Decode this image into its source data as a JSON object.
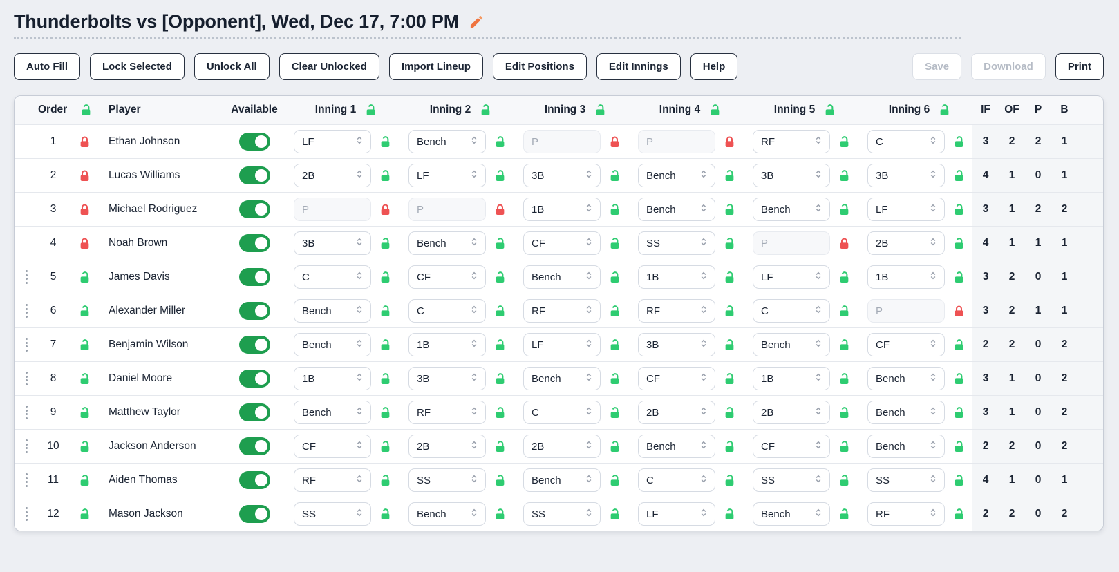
{
  "header": {
    "title": "Thunderbolts vs [Opponent], Wed, Dec 17, 7:00 PM"
  },
  "toolbar": {
    "left_buttons": [
      {
        "label": "Auto Fill",
        "enabled": true
      },
      {
        "label": "Lock Selected",
        "enabled": true
      },
      {
        "label": "Unlock All",
        "enabled": true
      },
      {
        "label": "Clear Unlocked",
        "enabled": true
      },
      {
        "label": "Import Lineup",
        "enabled": true
      },
      {
        "label": "Edit Positions",
        "enabled": true
      },
      {
        "label": "Edit Innings",
        "enabled": true
      },
      {
        "label": "Help",
        "enabled": true
      }
    ],
    "right_buttons": [
      {
        "label": "Save",
        "enabled": false
      },
      {
        "label": "Download",
        "enabled": false
      },
      {
        "label": "Print",
        "enabled": true
      }
    ]
  },
  "table": {
    "columns": {
      "order": "Order",
      "player": "Player",
      "available": "Available",
      "innings": [
        "Inning 1",
        "Inning 2",
        "Inning 3",
        "Inning 4",
        "Inning 5",
        "Inning 6"
      ],
      "stats": [
        "IF",
        "OF",
        "P",
        "B"
      ]
    },
    "players": [
      {
        "order": 1,
        "name": "Ethan Johnson",
        "available": true,
        "row_locked": true,
        "draggable": false,
        "innings": [
          {
            "pos": "LF",
            "locked": false
          },
          {
            "pos": "Bench",
            "locked": false
          },
          {
            "pos": "P",
            "locked": true
          },
          {
            "pos": "P",
            "locked": true
          },
          {
            "pos": "RF",
            "locked": false
          },
          {
            "pos": "C",
            "locked": false
          }
        ],
        "stats": [
          3,
          2,
          2,
          1
        ]
      },
      {
        "order": 2,
        "name": "Lucas Williams",
        "available": true,
        "row_locked": true,
        "draggable": false,
        "innings": [
          {
            "pos": "2B",
            "locked": false
          },
          {
            "pos": "LF",
            "locked": false
          },
          {
            "pos": "3B",
            "locked": false
          },
          {
            "pos": "Bench",
            "locked": false
          },
          {
            "pos": "3B",
            "locked": false
          },
          {
            "pos": "3B",
            "locked": false
          }
        ],
        "stats": [
          4,
          1,
          0,
          1
        ]
      },
      {
        "order": 3,
        "name": "Michael Rodriguez",
        "available": true,
        "row_locked": true,
        "draggable": false,
        "innings": [
          {
            "pos": "P",
            "locked": true
          },
          {
            "pos": "P",
            "locked": true
          },
          {
            "pos": "1B",
            "locked": false
          },
          {
            "pos": "Bench",
            "locked": false
          },
          {
            "pos": "Bench",
            "locked": false
          },
          {
            "pos": "LF",
            "locked": false
          }
        ],
        "stats": [
          3,
          1,
          2,
          2
        ]
      },
      {
        "order": 4,
        "name": "Noah Brown",
        "available": true,
        "row_locked": true,
        "draggable": false,
        "innings": [
          {
            "pos": "3B",
            "locked": false
          },
          {
            "pos": "Bench",
            "locked": false
          },
          {
            "pos": "CF",
            "locked": false
          },
          {
            "pos": "SS",
            "locked": false
          },
          {
            "pos": "P",
            "locked": true
          },
          {
            "pos": "2B",
            "locked": false
          }
        ],
        "stats": [
          4,
          1,
          1,
          1
        ]
      },
      {
        "order": 5,
        "name": "James Davis",
        "available": true,
        "row_locked": false,
        "draggable": true,
        "innings": [
          {
            "pos": "C",
            "locked": false
          },
          {
            "pos": "CF",
            "locked": false
          },
          {
            "pos": "Bench",
            "locked": false
          },
          {
            "pos": "1B",
            "locked": false
          },
          {
            "pos": "LF",
            "locked": false
          },
          {
            "pos": "1B",
            "locked": false
          }
        ],
        "stats": [
          3,
          2,
          0,
          1
        ]
      },
      {
        "order": 6,
        "name": "Alexander Miller",
        "available": true,
        "row_locked": false,
        "draggable": true,
        "innings": [
          {
            "pos": "Bench",
            "locked": false
          },
          {
            "pos": "C",
            "locked": false
          },
          {
            "pos": "RF",
            "locked": false
          },
          {
            "pos": "RF",
            "locked": false
          },
          {
            "pos": "C",
            "locked": false
          },
          {
            "pos": "P",
            "locked": true
          }
        ],
        "stats": [
          3,
          2,
          1,
          1
        ]
      },
      {
        "order": 7,
        "name": "Benjamin Wilson",
        "available": true,
        "row_locked": false,
        "draggable": true,
        "innings": [
          {
            "pos": "Bench",
            "locked": false
          },
          {
            "pos": "1B",
            "locked": false
          },
          {
            "pos": "LF",
            "locked": false
          },
          {
            "pos": "3B",
            "locked": false
          },
          {
            "pos": "Bench",
            "locked": false
          },
          {
            "pos": "CF",
            "locked": false
          }
        ],
        "stats": [
          2,
          2,
          0,
          2
        ]
      },
      {
        "order": 8,
        "name": "Daniel Moore",
        "available": true,
        "row_locked": false,
        "draggable": true,
        "innings": [
          {
            "pos": "1B",
            "locked": false
          },
          {
            "pos": "3B",
            "locked": false
          },
          {
            "pos": "Bench",
            "locked": false
          },
          {
            "pos": "CF",
            "locked": false
          },
          {
            "pos": "1B",
            "locked": false
          },
          {
            "pos": "Bench",
            "locked": false
          }
        ],
        "stats": [
          3,
          1,
          0,
          2
        ]
      },
      {
        "order": 9,
        "name": "Matthew Taylor",
        "available": true,
        "row_locked": false,
        "draggable": true,
        "innings": [
          {
            "pos": "Bench",
            "locked": false
          },
          {
            "pos": "RF",
            "locked": false
          },
          {
            "pos": "C",
            "locked": false
          },
          {
            "pos": "2B",
            "locked": false
          },
          {
            "pos": "2B",
            "locked": false
          },
          {
            "pos": "Bench",
            "locked": false
          }
        ],
        "stats": [
          3,
          1,
          0,
          2
        ]
      },
      {
        "order": 10,
        "name": "Jackson Anderson",
        "available": true,
        "row_locked": false,
        "draggable": true,
        "innings": [
          {
            "pos": "CF",
            "locked": false
          },
          {
            "pos": "2B",
            "locked": false
          },
          {
            "pos": "2B",
            "locked": false
          },
          {
            "pos": "Bench",
            "locked": false
          },
          {
            "pos": "CF",
            "locked": false
          },
          {
            "pos": "Bench",
            "locked": false
          }
        ],
        "stats": [
          2,
          2,
          0,
          2
        ]
      },
      {
        "order": 11,
        "name": "Aiden Thomas",
        "available": true,
        "row_locked": false,
        "draggable": true,
        "innings": [
          {
            "pos": "RF",
            "locked": false
          },
          {
            "pos": "SS",
            "locked": false
          },
          {
            "pos": "Bench",
            "locked": false
          },
          {
            "pos": "C",
            "locked": false
          },
          {
            "pos": "SS",
            "locked": false
          },
          {
            "pos": "SS",
            "locked": false
          }
        ],
        "stats": [
          4,
          1,
          0,
          1
        ]
      },
      {
        "order": 12,
        "name": "Mason Jackson",
        "available": true,
        "row_locked": false,
        "draggable": true,
        "innings": [
          {
            "pos": "SS",
            "locked": false
          },
          {
            "pos": "Bench",
            "locked": false
          },
          {
            "pos": "SS",
            "locked": false
          },
          {
            "pos": "LF",
            "locked": false
          },
          {
            "pos": "Bench",
            "locked": false
          },
          {
            "pos": "RF",
            "locked": false
          }
        ],
        "stats": [
          2,
          2,
          0,
          2
        ]
      }
    ]
  },
  "colors": {
    "locked_red": "#ee5253",
    "unlocked_green": "#2ecc71",
    "toggle_on_green": "#1e9e4f",
    "pencil_orange": "#ef7440"
  }
}
